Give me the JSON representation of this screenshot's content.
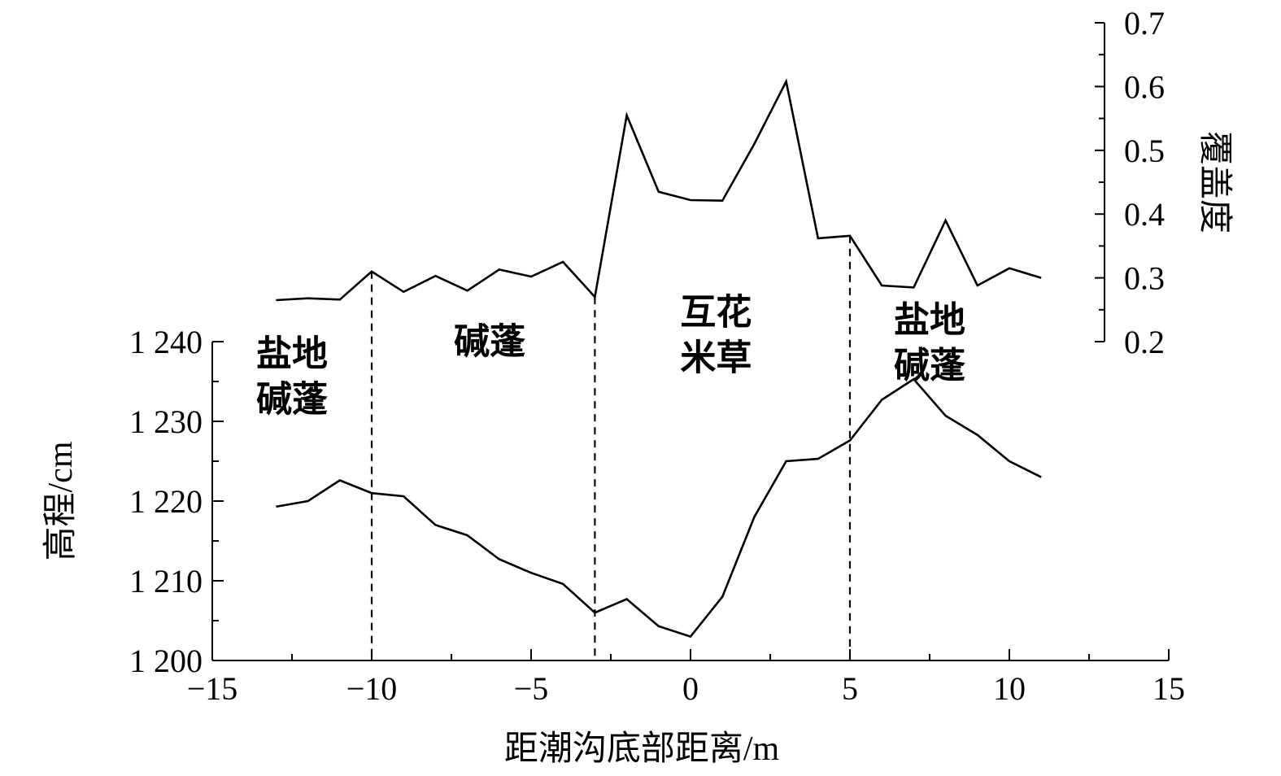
{
  "chart_data": {
    "type": "line",
    "x_axis": {
      "label": "距潮沟底部距离/m",
      "range": [
        -15,
        15
      ],
      "ticks": [
        -15,
        -10,
        -5,
        0,
        5,
        10,
        15
      ],
      "tick_labels": [
        "−15",
        "−10",
        "−5",
        "0",
        "5",
        "10",
        "15"
      ],
      "minor_step": 2.5
    },
    "y_left": {
      "label": "高程/cm",
      "range": [
        1200,
        1240
      ],
      "ticks": [
        1200,
        1210,
        1220,
        1230,
        1240
      ],
      "tick_labels": [
        "1 200",
        "1 210",
        "1 220",
        "1 230",
        "1 240"
      ],
      "minor_step": 5
    },
    "y_right": {
      "label": "覆盖度",
      "range": [
        0.2,
        0.7
      ],
      "ticks": [
        0.2,
        0.3,
        0.4,
        0.5,
        0.6,
        0.7
      ],
      "tick_labels": [
        "0.2",
        "0.3",
        "0.4",
        "0.5",
        "0.6",
        "0.7"
      ],
      "minor_step": 0.05
    },
    "x": [
      -13,
      -12,
      -11,
      -10,
      -9,
      -8,
      -7,
      -6,
      -5,
      -4,
      -3,
      -2,
      -1,
      0,
      1,
      2,
      3,
      4,
      5,
      6,
      7,
      8,
      9,
      10,
      11
    ],
    "series": [
      {
        "axis": "left",
        "values": [
          1219.3,
          1220.0,
          1222.6,
          1221.0,
          1220.6,
          1217.0,
          1215.7,
          1212.7,
          1211.0,
          1209.6,
          1206.0,
          1207.7,
          1204.3,
          1203.0,
          1208.0,
          1218.0,
          1225.0,
          1225.3,
          1227.6,
          1232.7,
          1235.3,
          1230.7,
          1228.3,
          1225.0,
          1223.0
        ]
      },
      {
        "axis": "right",
        "values": [
          0.265,
          0.268,
          0.266,
          0.31,
          0.278,
          0.303,
          0.28,
          0.313,
          0.302,
          0.325,
          0.27,
          0.555,
          0.435,
          0.422,
          0.421,
          0.51,
          0.608,
          0.362,
          0.366,
          0.288,
          0.285,
          0.39,
          0.288,
          0.315,
          0.3
        ]
      }
    ],
    "dividers": [
      -10,
      -3,
      5
    ],
    "zone_labels": [
      {
        "lines": [
          "盐地",
          "碱蓬"
        ],
        "x": -12.5,
        "level": 1237
      },
      {
        "lines": [
          "碱蓬"
        ],
        "x": -6.3,
        "level": 1238.5
      },
      {
        "lines": [
          "互花",
          "米草"
        ],
        "x": 0.8,
        "level": 1242.2
      },
      {
        "lines": [
          "盐地",
          "碱蓬"
        ],
        "x": 7.5,
        "level": 1241.2
      }
    ],
    "grid": false,
    "legend": "none"
  }
}
